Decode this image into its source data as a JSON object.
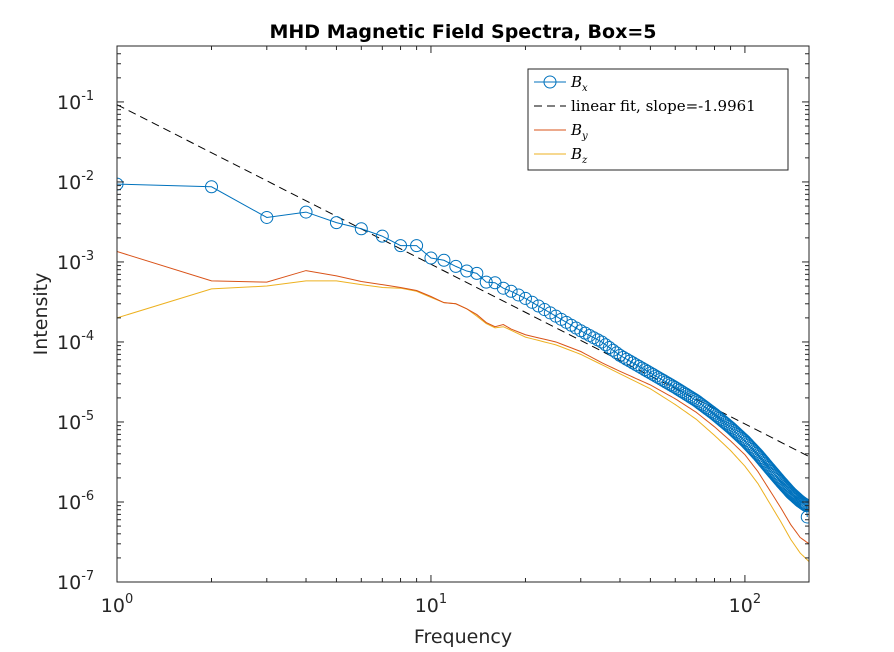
{
  "chart_data": {
    "type": "line",
    "title": "MHD Magnetic Field Spectra, Box=5",
    "xlabel": "Frequency",
    "ylabel": "Intensity",
    "xscale": "log",
    "yscale": "log",
    "xlim": [
      1,
      160
    ],
    "ylim": [
      1e-07,
      0.5
    ],
    "x_ticks": [
      {
        "base": "10",
        "exp": "0",
        "value": 1
      },
      {
        "base": "10",
        "exp": "1",
        "value": 10
      },
      {
        "base": "10",
        "exp": "2",
        "value": 100
      }
    ],
    "y_ticks": [
      {
        "base": "10",
        "exp": "-7",
        "value": 1e-07
      },
      {
        "base": "10",
        "exp": "-6",
        "value": 1e-06
      },
      {
        "base": "10",
        "exp": "-5",
        "value": 1e-05
      },
      {
        "base": "10",
        "exp": "-4",
        "value": 0.0001
      },
      {
        "base": "10",
        "exp": "-3",
        "value": 0.001
      },
      {
        "base": "10",
        "exp": "-2",
        "value": 0.01
      },
      {
        "base": "10",
        "exp": "-1",
        "value": 0.1
      }
    ],
    "grid": false,
    "legend_position": "top-right",
    "series": [
      {
        "name": "B",
        "sub": "x",
        "color": "#0072BD",
        "style": "line-circle",
        "anchors": [
          [
            1,
            0.0094
          ],
          [
            2,
            0.0087
          ],
          [
            3,
            0.0036
          ],
          [
            4,
            0.0042
          ],
          [
            5,
            0.0031
          ],
          [
            6,
            0.0026
          ],
          [
            7,
            0.0021
          ],
          [
            8,
            0.0016
          ],
          [
            9,
            0.0016
          ],
          [
            10,
            0.00112
          ],
          [
            11,
            0.00105
          ],
          [
            12,
            0.00088
          ],
          [
            13,
            0.00077
          ],
          [
            14,
            0.00072
          ],
          [
            15,
            0.00056
          ],
          [
            16,
            0.00055
          ],
          [
            17,
            0.00047
          ],
          [
            18,
            0.00043
          ],
          [
            20,
            0.00035
          ],
          [
            25,
            0.00021
          ],
          [
            30,
            0.000138
          ],
          [
            35,
            0.0001
          ],
          [
            40,
            6.8e-05
          ],
          [
            45,
            5.2e-05
          ],
          [
            50,
            4.1e-05
          ],
          [
            60,
            2.7e-05
          ],
          [
            70,
            1.85e-05
          ],
          [
            80,
            1.25e-05
          ],
          [
            90,
            8.5e-06
          ],
          [
            100,
            5.8e-06
          ],
          [
            110,
            3.9e-06
          ],
          [
            120,
            2.6e-06
          ],
          [
            130,
            1.8e-06
          ],
          [
            140,
            1.3e-06
          ],
          [
            150,
            1.02e-06
          ],
          [
            157,
            9e-07
          ],
          [
            158,
            6.5e-07
          ]
        ]
      },
      {
        "name": "linear fit, slope=-1.9961",
        "color": "#000000",
        "style": "dashed",
        "anchors": [
          [
            1,
            0.0925
          ],
          [
            160,
            3.7e-06
          ]
        ]
      },
      {
        "name": "B",
        "sub": "y",
        "color": "#D95319",
        "style": "line",
        "anchors": [
          [
            1,
            0.00135
          ],
          [
            2,
            0.00058
          ],
          [
            3,
            0.00056
          ],
          [
            4,
            0.00078
          ],
          [
            5,
            0.00067
          ],
          [
            6,
            0.00057
          ],
          [
            7,
            0.00052
          ],
          [
            8,
            0.00048
          ],
          [
            9,
            0.00044
          ],
          [
            10,
            0.00037
          ],
          [
            11,
            0.00031
          ],
          [
            12,
            0.0003
          ],
          [
            13,
            0.00026
          ],
          [
            14,
            0.00022
          ],
          [
            15,
            0.000175
          ],
          [
            16,
            0.000155
          ],
          [
            17,
            0.000165
          ],
          [
            18,
            0.000145
          ],
          [
            20,
            0.000123
          ],
          [
            25,
            0.0001
          ],
          [
            30,
            7.6e-05
          ],
          [
            35,
            5.5e-05
          ],
          [
            40,
            4.3e-05
          ],
          [
            50,
            2.9e-05
          ],
          [
            60,
            1.95e-05
          ],
          [
            70,
            1.32e-05
          ],
          [
            80,
            8.7e-06
          ],
          [
            90,
            5.8e-06
          ],
          [
            100,
            3.9e-06
          ],
          [
            110,
            2.4e-06
          ],
          [
            120,
            1.4e-06
          ],
          [
            130,
            8.5e-07
          ],
          [
            140,
            5.2e-07
          ],
          [
            150,
            3.6e-07
          ],
          [
            160,
            3e-07
          ]
        ]
      },
      {
        "name": "B",
        "sub": "z",
        "color": "#EDB120",
        "style": "line",
        "anchors": [
          [
            1,
            0.0002
          ],
          [
            2,
            0.00046
          ],
          [
            3,
            0.0005
          ],
          [
            4,
            0.00058
          ],
          [
            5,
            0.00058
          ],
          [
            6,
            0.00052
          ],
          [
            7,
            0.00048
          ],
          [
            8,
            0.00047
          ],
          [
            9,
            0.00043
          ],
          [
            10,
            0.00036
          ],
          [
            11,
            0.00031
          ],
          [
            12,
            0.0003
          ],
          [
            13,
            0.00026
          ],
          [
            14,
            0.00021
          ],
          [
            15,
            0.00017
          ],
          [
            16,
            0.00015
          ],
          [
            17,
            0.000155
          ],
          [
            18,
            0.00014
          ],
          [
            20,
            0.000115
          ],
          [
            25,
            9.2e-05
          ],
          [
            30,
            7e-05
          ],
          [
            35,
            5.2e-05
          ],
          [
            40,
            4e-05
          ],
          [
            50,
            2.6e-05
          ],
          [
            60,
            1.65e-05
          ],
          [
            70,
            1.08e-05
          ],
          [
            80,
            6.8e-06
          ],
          [
            90,
            4.4e-06
          ],
          [
            100,
            2.8e-06
          ],
          [
            110,
            1.7e-06
          ],
          [
            120,
            9.6e-07
          ],
          [
            130,
            5.7e-07
          ],
          [
            140,
            3.4e-07
          ],
          [
            150,
            2.3e-07
          ],
          [
            160,
            1.8e-07
          ]
        ]
      }
    ]
  }
}
